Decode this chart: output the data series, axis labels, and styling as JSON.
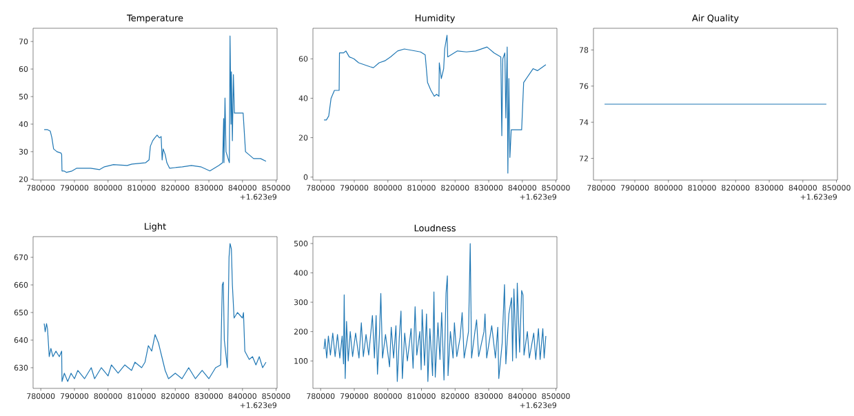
{
  "chart_data": [
    {
      "type": "line",
      "title": "Temperature",
      "xlim": [
        777700,
        850300
      ],
      "ylim": [
        19.7,
        74.8
      ],
      "xticks": [
        780000,
        790000,
        800000,
        810000,
        820000,
        830000,
        840000,
        850000
      ],
      "yticks": [
        20,
        30,
        40,
        50,
        60,
        70
      ],
      "annotations": [
        "+1.623e9"
      ],
      "x": [
        781000,
        782000,
        782800,
        783300,
        783800,
        784800,
        786000,
        786200,
        786300,
        786900,
        787600,
        789300,
        790700,
        794800,
        797500,
        798900,
        801600,
        805700,
        807100,
        811200,
        812200,
        812600,
        813300,
        813900,
        814600,
        815300,
        815800,
        816100,
        816400,
        817000,
        817500,
        818300,
        822100,
        824800,
        827600,
        830300,
        833000,
        834100,
        834400,
        834500,
        834800,
        835100,
        836100,
        836300,
        836600,
        836700,
        837000,
        837300,
        837600,
        840200,
        840900,
        843300,
        845400,
        847000
      ],
      "series": [
        {
          "color": "#1f77b4",
          "values": [
            38,
            38,
            37.5,
            35,
            31,
            30,
            29.5,
            29,
            23,
            23,
            22.5,
            23,
            24,
            24,
            23.5,
            24.5,
            25.3,
            25,
            25.5,
            26,
            27,
            32,
            34,
            35,
            36,
            35,
            35.5,
            27,
            31,
            29,
            26,
            24,
            24.5,
            25,
            24.5,
            23,
            25,
            26,
            42,
            26,
            49.5,
            30,
            26,
            72,
            40,
            59,
            34,
            58,
            44,
            44,
            30,
            27.5,
            27.5,
            26.5
          ]
        }
      ]
    },
    {
      "type": "line",
      "title": "Humidity",
      "xlim": [
        777700,
        850300
      ],
      "ylim": [
        -1.5,
        75.5
      ],
      "xticks": [
        780000,
        790000,
        800000,
        810000,
        820000,
        830000,
        840000,
        850000
      ],
      "yticks": [
        0,
        20,
        40,
        60
      ],
      "annotations": [
        "+1.623e9"
      ],
      "x": [
        781000,
        781700,
        782400,
        783100,
        784100,
        785500,
        785600,
        786800,
        787500,
        788500,
        789900,
        791300,
        794700,
        795700,
        797400,
        799100,
        800800,
        802900,
        804900,
        809700,
        811100,
        811800,
        812800,
        813800,
        814500,
        815200,
        815300,
        815900,
        816600,
        816900,
        817600,
        817800,
        820700,
        823400,
        826100,
        829500,
        831600,
        833600,
        833900,
        834200,
        834800,
        835100,
        835500,
        835700,
        836000,
        836300,
        836700,
        839800,
        840400,
        843200,
        844500,
        847000
      ],
      "series": [
        {
          "color": "#1f77b4",
          "values": [
            29,
            29,
            31,
            40,
            44,
            44,
            63,
            63,
            64,
            61,
            60,
            58,
            56,
            55.5,
            58,
            59,
            61,
            64,
            65,
            63.5,
            62,
            48,
            44,
            41,
            42,
            41,
            58,
            50,
            55,
            65,
            72,
            61,
            64,
            63.5,
            64,
            66,
            63,
            61,
            21,
            60,
            63,
            30,
            66,
            2,
            50,
            10,
            24,
            24,
            48,
            55,
            54,
            57
          ]
        }
      ]
    },
    {
      "type": "line",
      "title": "Air Quality",
      "xlim": [
        777700,
        850300
      ],
      "ylim": [
        70.8,
        79.2
      ],
      "xticks": [
        780000,
        790000,
        800000,
        810000,
        820000,
        830000,
        840000,
        850000
      ],
      "yticks": [
        72,
        74,
        76,
        78
      ],
      "annotations": [
        "+1.623e9"
      ],
      "x": [
        781000,
        847000
      ],
      "series": [
        {
          "color": "#1f77b4",
          "values": [
            75,
            75
          ]
        }
      ]
    },
    {
      "type": "line",
      "title": "Light",
      "xlim": [
        777700,
        850300
      ],
      "ylim": [
        622.5,
        677.5
      ],
      "xticks": [
        780000,
        790000,
        800000,
        810000,
        820000,
        830000,
        840000,
        850000
      ],
      "yticks": [
        630,
        640,
        650,
        660,
        670
      ],
      "annotations": [
        "+1.623e9"
      ],
      "x": [
        781000,
        781300,
        781700,
        782000,
        782500,
        783000,
        783600,
        784500,
        785500,
        786200,
        786300,
        787000,
        788000,
        789000,
        790000,
        791000,
        793000,
        795000,
        796000,
        798000,
        800000,
        801000,
        803000,
        805000,
        807000,
        808000,
        810000,
        811000,
        812000,
        813000,
        814000,
        815000,
        816000,
        817000,
        818000,
        820000,
        822000,
        824000,
        826000,
        828000,
        830000,
        832000,
        833500,
        834000,
        834300,
        834600,
        835500,
        836000,
        836300,
        836700,
        837000,
        837500,
        838500,
        840000,
        840300,
        840700,
        842000,
        843000,
        844000,
        845000,
        846000,
        847000
      ],
      "series": [
        {
          "color": "#1f77b4",
          "values": [
            646,
            643,
            646,
            644,
            634,
            637,
            634,
            636,
            634,
            636,
            625,
            628,
            625,
            628,
            626,
            629,
            626,
            630,
            626,
            630,
            627,
            631,
            628,
            631,
            629,
            632,
            630,
            632,
            638,
            636,
            642,
            639,
            634,
            629,
            626,
            628,
            626,
            630,
            626,
            629,
            626,
            630,
            631,
            660,
            661,
            640,
            630,
            670,
            675,
            673,
            660,
            648,
            650,
            648,
            650,
            636,
            633,
            634,
            631,
            634,
            630,
            632
          ]
        }
      ]
    },
    {
      "type": "line",
      "title": "Loudness",
      "xlim": [
        777700,
        850300
      ],
      "ylim": [
        6.5,
        523.5
      ],
      "xticks": [
        780000,
        790000,
        800000,
        810000,
        820000,
        830000,
        840000,
        850000
      ],
      "yticks": [
        100,
        200,
        300,
        400,
        500
      ],
      "annotations": [
        "+1.623e9"
      ],
      "x": [
        781000,
        781300,
        781800,
        782300,
        782900,
        783600,
        784300,
        785000,
        785700,
        786400,
        786800,
        787000,
        787300,
        787700,
        788200,
        788800,
        789500,
        790400,
        791400,
        792100,
        792700,
        793500,
        794300,
        795400,
        796000,
        796500,
        796900,
        797500,
        797900,
        798400,
        799300,
        800500,
        801000,
        801700,
        802400,
        802800,
        803400,
        803900,
        804300,
        805000,
        805800,
        806900,
        807500,
        808100,
        808600,
        809500,
        809900,
        810200,
        810900,
        811500,
        811900,
        812500,
        813300,
        813700,
        814100,
        814900,
        815500,
        816000,
        816700,
        817300,
        817700,
        817900,
        818600,
        819400,
        819800,
        820500,
        821500,
        822100,
        822700,
        824000,
        824500,
        824900,
        825900,
        826400,
        827000,
        828600,
        828900,
        829400,
        830900,
        832000,
        832700,
        833000,
        834000,
        834700,
        835100,
        836000,
        836800,
        837100,
        837500,
        838200,
        838500,
        839200,
        839800,
        840200,
        840500,
        841500,
        842100,
        843400,
        844000,
        844800,
        845300,
        846100,
        846500,
        847000
      ],
      "series": [
        {
          "color": "#1f77b4",
          "values": [
            140,
            175,
            110,
            185,
            120,
            195,
            115,
            190,
            110,
            185,
            90,
            325,
            40,
            235,
            100,
            200,
            115,
            195,
            110,
            230,
            115,
            190,
            120,
            255,
            110,
            255,
            55,
            190,
            330,
            110,
            190,
            80,
            215,
            110,
            220,
            30,
            180,
            270,
            40,
            195,
            100,
            210,
            75,
            285,
            120,
            200,
            70,
            275,
            85,
            260,
            30,
            210,
            50,
            335,
            45,
            230,
            105,
            265,
            35,
            330,
            390,
            50,
            200,
            110,
            230,
            115,
            180,
            265,
            110,
            200,
            500,
            110,
            200,
            240,
            115,
            200,
            260,
            110,
            220,
            110,
            215,
            40,
            160,
            360,
            90,
            260,
            315,
            100,
            345,
            110,
            365,
            130,
            340,
            325,
            120,
            200,
            110,
            195,
            105,
            210,
            105,
            210,
            110,
            185
          ]
        }
      ]
    }
  ]
}
